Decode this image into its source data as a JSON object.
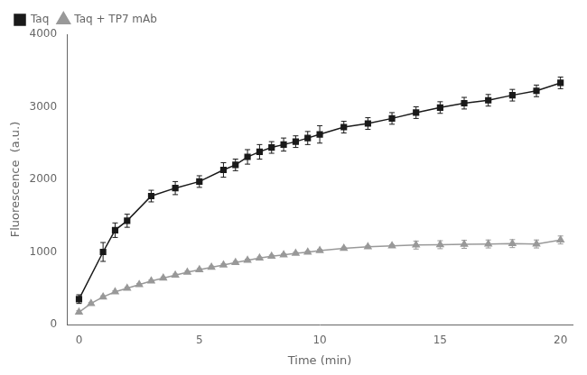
{
  "chart_data": {
    "type": "line",
    "xlabel": "Time (min)",
    "ylabel": "Fluorescence  (a.u.)",
    "xlim": [
      -0.5,
      20.5
    ],
    "ylim": [
      0,
      4000
    ],
    "xticks": [
      0,
      5,
      10,
      15,
      20
    ],
    "yticks": [
      0,
      1000,
      2000,
      3000,
      4000
    ],
    "grid": false,
    "legend": "upper left",
    "series": [
      {
        "name": "Taq",
        "color": "#1a1a1a",
        "marker": "square",
        "line_style": "solid",
        "x": [
          0,
          1,
          1.5,
          2,
          3,
          4,
          5,
          6,
          6.5,
          7,
          7.5,
          8,
          8.5,
          9,
          9.5,
          10,
          11,
          12,
          13,
          14,
          15,
          16,
          17,
          18,
          19,
          20
        ],
        "values": [
          350,
          1000,
          1300,
          1430,
          1770,
          1880,
          1970,
          2130,
          2200,
          2310,
          2380,
          2440,
          2480,
          2520,
          2570,
          2620,
          2720,
          2770,
          2840,
          2920,
          2990,
          3050,
          3090,
          3160,
          3220,
          3330
        ],
        "errors": [
          60,
          130,
          100,
          90,
          80,
          90,
          80,
          100,
          80,
          100,
          100,
          80,
          90,
          80,
          90,
          120,
          80,
          80,
          80,
          80,
          80,
          80,
          80,
          80,
          80,
          80
        ]
      },
      {
        "name": "Taq + TP7 mAb",
        "color": "#999999",
        "marker": "triangle",
        "line_style": "solid",
        "x": [
          0,
          0.5,
          1,
          1.5,
          2,
          2.5,
          3,
          3.5,
          4,
          4.5,
          5,
          5.5,
          6,
          6.5,
          7,
          7.5,
          8,
          8.5,
          9,
          9.5,
          10,
          11,
          12,
          13,
          14,
          15,
          16,
          17,
          18,
          19,
          20
        ],
        "values": [
          170,
          290,
          380,
          450,
          500,
          550,
          600,
          640,
          680,
          720,
          755,
          790,
          820,
          855,
          885,
          915,
          940,
          960,
          980,
          998,
          1020,
          1050,
          1070,
          1085,
          1095,
          1100,
          1105,
          1110,
          1115,
          1110,
          1165
        ],
        "errors": [
          20,
          15,
          15,
          15,
          15,
          15,
          15,
          15,
          15,
          15,
          15,
          15,
          15,
          15,
          15,
          15,
          15,
          15,
          15,
          15,
          15,
          15,
          15,
          15,
          55,
          55,
          55,
          55,
          55,
          55,
          55
        ]
      }
    ]
  }
}
